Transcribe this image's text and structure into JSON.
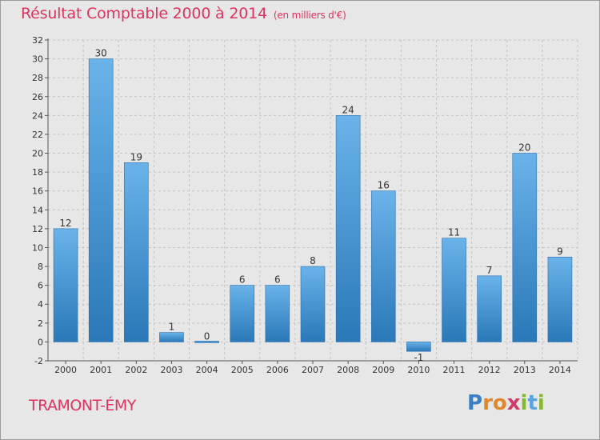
{
  "title": "Résultat Comptable 2000 à 2014",
  "subtitle": "(en milliers d'€)",
  "town": "TRAMONT-ÉMY",
  "brand": {
    "letters": [
      "P",
      "r",
      "o",
      "x",
      "i",
      "t",
      "i"
    ],
    "colors": [
      "#3a7ec6",
      "#e2862c",
      "#e2862c",
      "#d33a6a",
      "#86b832",
      "#5aa3dc",
      "#86b832"
    ]
  },
  "colors": {
    "bar_light": "#6ab3ea",
    "bar_dark": "#2a78b8",
    "grid": "#c4c4c4",
    "text": "#333333",
    "accent": "#e0335f"
  },
  "chart_data": {
    "type": "bar",
    "title": "Résultat Comptable 2000 à 2014",
    "subtitle": "(en milliers d'€)",
    "xlabel": "",
    "ylabel": "",
    "categories": [
      "2000",
      "2001",
      "2002",
      "2003",
      "2004",
      "2005",
      "2006",
      "2007",
      "2008",
      "2009",
      "2010",
      "2011",
      "2012",
      "2013",
      "2014"
    ],
    "values": [
      12,
      30,
      19,
      1,
      0,
      6,
      6,
      8,
      24,
      16,
      -1,
      11,
      7,
      20,
      9
    ],
    "ylim": [
      -2,
      32
    ],
    "yticks": [
      -2,
      0,
      2,
      4,
      6,
      8,
      10,
      12,
      14,
      16,
      18,
      20,
      22,
      24,
      26,
      28,
      30,
      32
    ],
    "grid": true
  }
}
